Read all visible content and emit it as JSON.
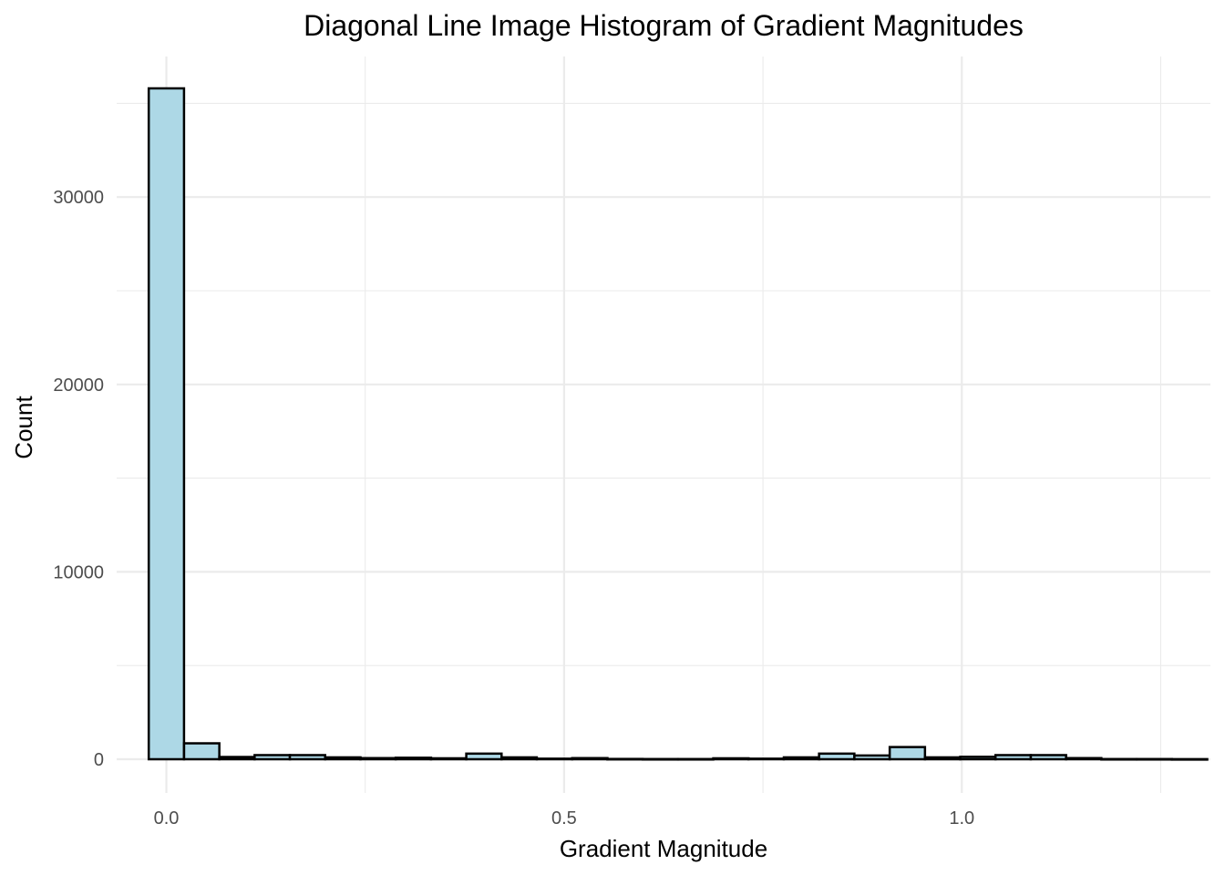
{
  "chart_data": {
    "type": "bar",
    "title": "Diagonal Line Image Histogram of Gradient Magnitudes",
    "xlabel": "Gradient Magnitude",
    "ylabel": "Count",
    "xlim": [
      -0.0625,
      1.3125
    ],
    "ylim": [
      -1800,
      37500
    ],
    "x_ticks": [
      0.0,
      0.5,
      1.0
    ],
    "x_tick_labels": [
      "0.0",
      "0.5",
      "1.0"
    ],
    "x_minor_ticks": [
      0.25,
      0.75,
      1.25
    ],
    "y_ticks": [
      0,
      10000,
      20000,
      30000
    ],
    "y_tick_labels": [
      "0",
      "10000",
      "20000",
      "30000"
    ],
    "y_minor_ticks": [
      5000,
      15000,
      25000,
      35000
    ],
    "grid": true,
    "bar_fill": "#add8e6",
    "bar_stroke": "#000000",
    "bin_width": 0.04435,
    "bins": [
      {
        "x": 0.0,
        "count": 35800
      },
      {
        "x": 0.0444,
        "count": 850
      },
      {
        "x": 0.0887,
        "count": 120
      },
      {
        "x": 0.1331,
        "count": 220
      },
      {
        "x": 0.1774,
        "count": 220
      },
      {
        "x": 0.2218,
        "count": 100
      },
      {
        "x": 0.2661,
        "count": 60
      },
      {
        "x": 0.3105,
        "count": 80
      },
      {
        "x": 0.3548,
        "count": 50
      },
      {
        "x": 0.3992,
        "count": 300
      },
      {
        "x": 0.4435,
        "count": 100
      },
      {
        "x": 0.4879,
        "count": 30
      },
      {
        "x": 0.5323,
        "count": 60
      },
      {
        "x": 0.5766,
        "count": 15
      },
      {
        "x": 0.621,
        "count": 10
      },
      {
        "x": 0.6653,
        "count": 10
      },
      {
        "x": 0.7097,
        "count": 50
      },
      {
        "x": 0.754,
        "count": 30
      },
      {
        "x": 0.7984,
        "count": 100
      },
      {
        "x": 0.8427,
        "count": 300
      },
      {
        "x": 0.8871,
        "count": 200
      },
      {
        "x": 0.9315,
        "count": 650
      },
      {
        "x": 0.9758,
        "count": 100
      },
      {
        "x": 1.0202,
        "count": 130
      },
      {
        "x": 1.0645,
        "count": 220
      },
      {
        "x": 1.1089,
        "count": 220
      },
      {
        "x": 1.1532,
        "count": 60
      },
      {
        "x": 1.1976,
        "count": 10
      },
      {
        "x": 1.2419,
        "count": 10
      },
      {
        "x": 1.2863,
        "count": 5
      }
    ]
  }
}
